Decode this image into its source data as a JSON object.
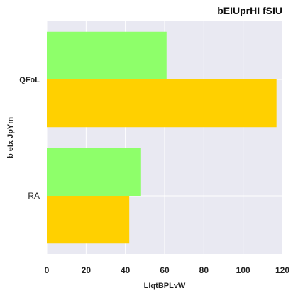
{
  "chart_data": {
    "type": "bar",
    "orientation": "horizontal",
    "title": "bEIUprHI fSIU",
    "xlabel": "LIqtBPLvW",
    "ylabel": "b eIx JpYm",
    "categories": [
      "QFoL",
      "RA"
    ],
    "series": [
      {
        "color": "#8eff6a",
        "values": [
          61,
          48
        ]
      },
      {
        "color": "#ffd000",
        "values": [
          117,
          42
        ]
      }
    ],
    "xlim": [
      0,
      120
    ],
    "xticks": [
      0,
      20,
      40,
      60,
      80,
      100,
      120
    ],
    "xtick_labels": [
      "0",
      "20",
      "40",
      "60",
      "80",
      "100",
      "120"
    ],
    "grid": true,
    "legend": "none",
    "background_color": "#e9e9f2"
  }
}
